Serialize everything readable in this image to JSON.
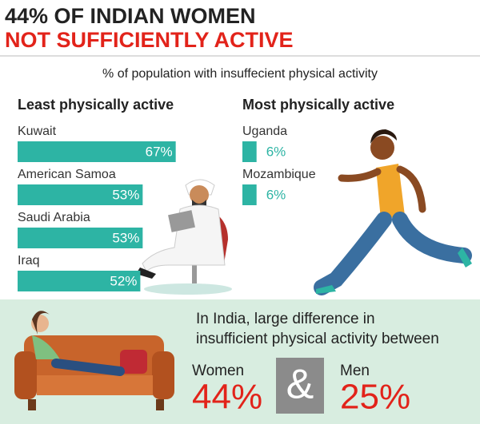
{
  "header": {
    "title_line1": "44% OF INDIAN WOMEN",
    "title_line2": "NOT SUFFICIENTLY ACTIVE",
    "subtitle": "% of population with insuffecient physical activity"
  },
  "chart_data": [
    {
      "type": "bar",
      "title": "Least physically active",
      "categories": [
        "Kuwait",
        "American Samoa",
        "Saudi Arabia",
        "Iraq"
      ],
      "values": [
        67,
        53,
        53,
        52
      ],
      "value_labels": [
        "67%",
        "53%",
        "53%",
        "52%"
      ],
      "color": "#2db4a4",
      "label_position": "inside"
    },
    {
      "type": "bar",
      "title": "Most physically active",
      "categories": [
        "Uganda",
        "Mozambique"
      ],
      "values": [
        6,
        6
      ],
      "value_labels": [
        "6%",
        "6%"
      ],
      "color": "#2db4a4",
      "label_position": "outside"
    }
  ],
  "india": {
    "lines": [
      "In India, large difference in",
      "insufficient physical activity between"
    ],
    "separator": "&",
    "items": [
      {
        "label": "Women",
        "value": "44%"
      },
      {
        "label": "Men",
        "value": "25%"
      }
    ]
  }
}
